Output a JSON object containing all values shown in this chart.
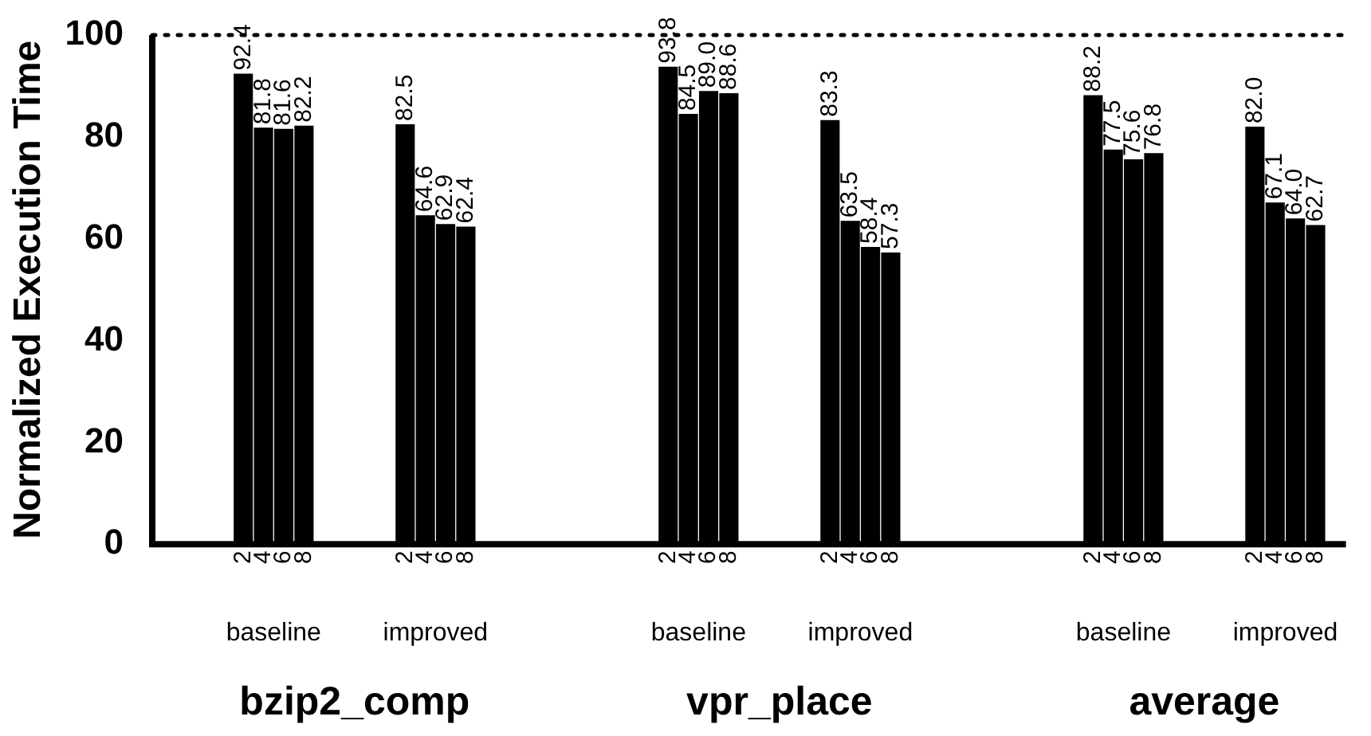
{
  "chart_data": {
    "type": "bar",
    "ylabel": "Normalized Execution Time",
    "categories": [
      null,
      null,
      null,
      null,
      "2",
      "4",
      "6",
      "8",
      null,
      null,
      null,
      null,
      "2",
      "4",
      "6",
      "8",
      null,
      null,
      null,
      null,
      null,
      null,
      null,
      null,
      null,
      "2",
      "4",
      "6",
      "8",
      null,
      null,
      null,
      null,
      "2",
      "4",
      "6",
      "8",
      null,
      null,
      null,
      null,
      null,
      null,
      null,
      null,
      null,
      "2",
      "4",
      "6",
      "8",
      null,
      null,
      null,
      null,
      "2",
      "4",
      "6",
      "8",
      null
    ],
    "series": [
      {
        "color": "#000000",
        "values": [
          null,
          null,
          null,
          null,
          92.4,
          81.8,
          81.6,
          82.2,
          null,
          null,
          null,
          null,
          82.5,
          64.6,
          62.9,
          62.4,
          null,
          null,
          null,
          null,
          null,
          null,
          null,
          null,
          null,
          93.8,
          84.5,
          89.0,
          88.6,
          null,
          null,
          null,
          null,
          83.3,
          63.5,
          58.4,
          57.3,
          null,
          null,
          null,
          null,
          null,
          null,
          null,
          null,
          null,
          88.2,
          77.5,
          75.6,
          76.8,
          null,
          null,
          null,
          null,
          82.0,
          67.1,
          64.0,
          62.7,
          null
        ],
        "value_labels": [
          null,
          null,
          null,
          null,
          "92.4",
          "81.8",
          "81.6",
          "82.2",
          null,
          null,
          null,
          null,
          "82.5",
          "64.6",
          "62.9",
          "62.4",
          null,
          null,
          null,
          null,
          null,
          null,
          null,
          null,
          null,
          "93.8",
          "84.5",
          "89.0",
          "88.6",
          null,
          null,
          null,
          null,
          "83.3",
          "63.5",
          "58.4",
          "57.3",
          null,
          null,
          null,
          null,
          null,
          null,
          null,
          null,
          null,
          "88.2",
          "77.5",
          "75.6",
          "76.8",
          null,
          null,
          null,
          null,
          "82.0",
          "67.1",
          "64.0",
          "62.7",
          null
        ]
      }
    ],
    "ylim": [
      0,
      100
    ],
    "yticks": [
      0,
      20,
      40,
      60,
      80,
      100
    ],
    "grid": false,
    "legend": false,
    "ref_lines": [
      {
        "axis": "y",
        "value": 100,
        "line_style": "dotted"
      }
    ],
    "annotations": [
      "baseline",
      "improved",
      "baseline",
      "improved",
      "baseline",
      "improved",
      "bzip2_comp",
      "vpr_place",
      "average"
    ]
  }
}
